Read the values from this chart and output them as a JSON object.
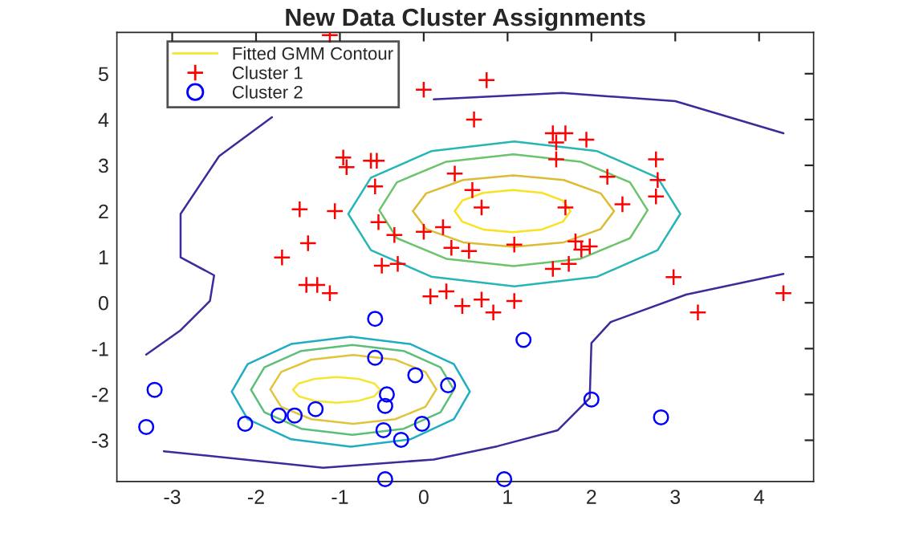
{
  "chart_data": {
    "type": "scatter",
    "title": "New Data Cluster Assignments",
    "xlim": [
      -3.66,
      4.65
    ],
    "ylim": [
      -3.9,
      5.9
    ],
    "xticks": [
      -3,
      -2,
      -1,
      0,
      1,
      2,
      3,
      4
    ],
    "yticks": [
      -3,
      -2,
      -1,
      0,
      1,
      2,
      3,
      4,
      5
    ],
    "grid": false,
    "legend": "top left",
    "series": [
      {
        "type": "line",
        "name": "Fitted GMM Contour",
        "color": "#f9e21f",
        "line_style": "solid",
        "x": [
          1.75,
          1.66,
          1.41,
          1.06,
          0.71,
          0.46,
          0.37,
          null,
          0.37,
          0.46,
          0.71,
          1.06,
          1.41,
          1.66,
          1.75
        ],
        "values": [
          2.0,
          2.23,
          2.4,
          2.46,
          2.4,
          2.23,
          2.0,
          null,
          2.0,
          1.77,
          1.6,
          1.54,
          1.6,
          1.77,
          2.0
        ]
      },
      {
        "type": "line",
        "color": "#dcbc34",
        "line_style": "solid",
        "x": [
          2.27,
          2.11,
          1.67,
          1.07,
          0.47,
          0.03,
          -0.13,
          null,
          -0.13,
          0.03,
          0.47,
          1.07,
          1.67,
          2.11,
          2.27
        ],
        "values": [
          2.0,
          2.39,
          2.68,
          2.78,
          2.68,
          2.39,
          2.0,
          null,
          2.0,
          1.61,
          1.32,
          1.22,
          1.32,
          1.61,
          2.0
        ]
      },
      {
        "type": "line",
        "color": "#6cc36c",
        "line_style": "solid",
        "x": [
          2.67,
          2.46,
          1.87,
          1.07,
          0.27,
          -0.32,
          -0.53,
          null,
          -0.53,
          -0.32,
          0.27,
          1.07,
          1.87,
          2.46,
          2.67
        ],
        "values": [
          2.02,
          2.63,
          3.08,
          3.24,
          3.08,
          2.63,
          2.02,
          null,
          2.02,
          1.41,
          0.96,
          0.8,
          0.96,
          1.41,
          2.02
        ]
      },
      {
        "type": "line",
        "color": "#27b5b5",
        "line_style": "solid",
        "x": [
          3.06,
          2.79,
          2.07,
          1.08,
          0.09,
          -0.63,
          -0.9,
          null,
          -0.9,
          -0.63,
          0.09,
          1.08,
          2.07,
          2.79,
          3.06
        ],
        "values": [
          1.94,
          2.73,
          3.31,
          3.52,
          3.31,
          2.73,
          1.94,
          null,
          1.94,
          1.15,
          0.57,
          0.36,
          0.57,
          1.15,
          1.94
        ]
      },
      {
        "type": "line",
        "color": "#f5e634",
        "line_style": "solid",
        "x": [
          -0.52,
          -0.59,
          -0.78,
          -1.04,
          -1.3,
          -1.49,
          -1.56,
          null,
          -1.56,
          -1.49,
          -1.3,
          -1.04,
          -0.78,
          -0.59,
          -0.52
        ],
        "values": [
          -1.9,
          -1.76,
          -1.66,
          -1.62,
          -1.66,
          -1.76,
          -1.9,
          null,
          -1.9,
          -2.04,
          -2.14,
          -2.18,
          -2.14,
          -2.04,
          -1.9
        ]
      },
      {
        "type": "line",
        "color": "#e0c43c",
        "line_style": "solid",
        "x": [
          0.15,
          0.02,
          -0.34,
          -0.84,
          -1.34,
          -1.7,
          -1.83,
          null,
          -1.83,
          -1.7,
          -1.34,
          -0.84,
          -0.34,
          0.02,
          0.15
        ],
        "values": [
          -1.89,
          -1.51,
          -1.24,
          -1.14,
          -1.24,
          -1.51,
          -1.89,
          null,
          -1.89,
          -2.27,
          -2.54,
          -2.64,
          -2.54,
          -2.27,
          -1.89
        ]
      },
      {
        "type": "line",
        "color": "#5cbf78",
        "line_style": "solid",
        "x": [
          0.36,
          0.2,
          -0.24,
          -0.85,
          -1.46,
          -1.9,
          -2.06,
          null,
          -2.06,
          -1.9,
          -1.46,
          -0.85,
          -0.24,
          0.2,
          0.36
        ],
        "values": [
          -1.9,
          -1.41,
          -1.05,
          -0.92,
          -1.05,
          -1.41,
          -1.9,
          null,
          -1.9,
          -2.39,
          -2.75,
          -2.88,
          -2.75,
          -2.39,
          -1.9
        ]
      },
      {
        "type": "line",
        "color": "#1fadc4",
        "line_style": "solid",
        "x": [
          0.55,
          0.36,
          -0.16,
          -0.87,
          -1.58,
          -2.1,
          -2.29,
          null,
          -2.29,
          -2.1,
          -1.58,
          -0.87,
          -0.16,
          0.36,
          0.55
        ],
        "values": [
          -1.94,
          -1.34,
          -0.9,
          -0.74,
          -0.9,
          -1.34,
          -1.94,
          null,
          -1.94,
          -2.54,
          -2.98,
          -3.14,
          -2.98,
          -2.54,
          -1.94
        ]
      },
      {
        "type": "line",
        "color": "#3e2a9a",
        "line_style": "solid",
        "x": [
          4.29,
          3.0,
          1.65,
          0.12,
          -0.85,
          -1.81,
          -2.44,
          -2.9,
          -2.9,
          -2.5,
          -2.55,
          -2.9,
          -3.31,
          null,
          -3.1,
          -1.2,
          0.12,
          0.88,
          1.6,
          1.98,
          2.0,
          2.23,
          3.13,
          4.29
        ],
        "values": [
          3.7,
          4.4,
          4.58,
          4.44,
          null,
          4.05,
          3.2,
          1.94,
          0.99,
          0.6,
          0.04,
          -0.6,
          -1.13,
          null,
          -3.24,
          -3.6,
          -3.42,
          -3.13,
          -2.78,
          -2.08,
          -0.88,
          -0.42,
          0.18,
          0.63
        ]
      },
      {
        "type": "scatter",
        "name": "Cluster 1",
        "color": "#ff0000",
        "marker": "cross",
        "x": [
          -1.12,
          0.75,
          0.6,
          0.0,
          1.54,
          1.69,
          1.58,
          1.94,
          -0.96,
          -0.92,
          -0.63,
          -0.56,
          -0.58,
          0.37,
          1.58,
          2.77,
          2.79,
          2.19,
          2.37,
          2.77,
          -1.48,
          -1.06,
          -0.54,
          0.58,
          0.69,
          1.69,
          -0.35,
          -1.38,
          0.33,
          0.54,
          1.08,
          0.23,
          0.0,
          -0.5,
          -0.31,
          -1.69,
          -1.4,
          -1.27,
          -1.12,
          0.08,
          0.27,
          0.46,
          0.69,
          0.83,
          1.08,
          1.54,
          1.73,
          1.88,
          1.81,
          1.98,
          2.98,
          3.27,
          4.29
        ],
        "values": [
          5.84,
          4.86,
          4.0,
          4.65,
          3.7,
          3.7,
          3.5,
          3.56,
          3.17,
          2.96,
          3.1,
          3.1,
          2.54,
          2.82,
          3.13,
          3.13,
          2.68,
          2.75,
          2.15,
          2.32,
          2.04,
          2.0,
          1.76,
          2.46,
          2.08,
          2.08,
          1.48,
          1.3,
          1.2,
          1.13,
          1.27,
          1.65,
          1.55,
          0.81,
          0.85,
          0.99,
          0.39,
          0.39,
          0.21,
          0.14,
          0.25,
          -0.07,
          0.07,
          -0.21,
          0.04,
          0.74,
          0.85,
          1.16,
          1.34,
          1.23,
          0.56,
          -0.21,
          0.21
        ]
      },
      {
        "type": "scatter",
        "name": "Cluster 2",
        "color": "#0000ff",
        "marker": "circle",
        "x": [
          -0.58,
          -0.58,
          -0.1,
          0.29,
          -0.44,
          -0.46,
          -3.21,
          -3.31,
          -2.13,
          -1.73,
          -1.54,
          -1.29,
          -0.48,
          -0.27,
          -0.02,
          -0.46,
          1.19,
          2.0,
          2.83,
          0.96
        ],
        "values": [
          -0.35,
          -1.2,
          -1.58,
          -1.8,
          -2.0,
          -2.25,
          -1.9,
          -2.71,
          -2.64,
          -2.46,
          -2.46,
          -2.32,
          -2.78,
          -2.99,
          -2.64,
          -3.85,
          -0.81,
          -2.11,
          -2.5,
          -3.85
        ]
      }
    ]
  }
}
